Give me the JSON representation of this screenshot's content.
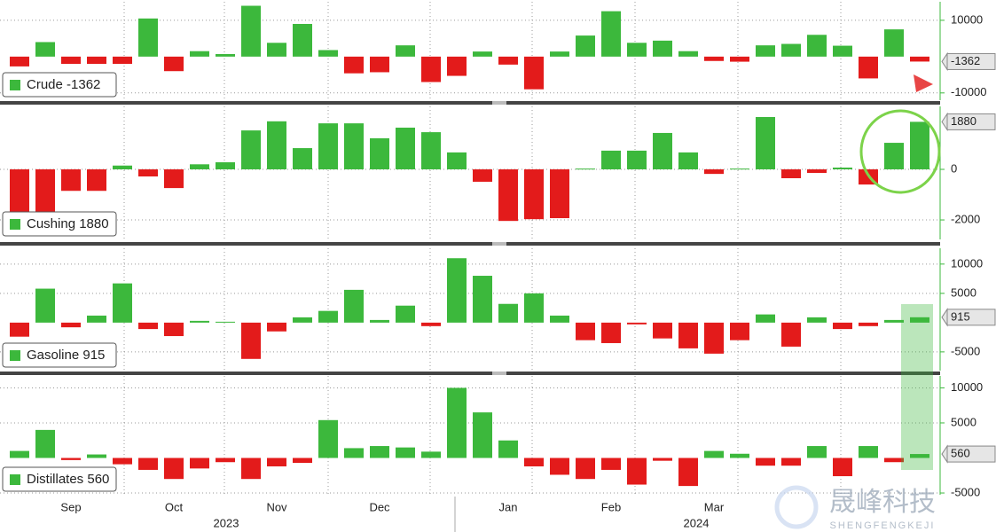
{
  "chart_data": [
    {
      "type": "bar",
      "name": "Crude",
      "legend": "Crude -1362",
      "up_color": "#3cb83c",
      "down_color": "#e31b1b",
      "ylim": [
        -12000,
        15100
      ],
      "yticks": [
        10000,
        -10000
      ],
      "grid": true,
      "values": [
        -2700,
        4000,
        -2000,
        -2000,
        -2000,
        10500,
        -4000,
        1500,
        700,
        14000,
        3800,
        9000,
        1800,
        -4600,
        -4300,
        3100,
        -7000,
        -5300,
        1400,
        -2200,
        -9000,
        1400,
        5800,
        12500,
        3800,
        4400,
        1500,
        -1200,
        -1400,
        3100,
        3500,
        6000,
        3000,
        -6000,
        7500,
        -1362
      ]
    },
    {
      "type": "bar",
      "name": "Cushing",
      "legend": "Cushing 1880",
      "up_color": "#3cb83c",
      "down_color": "#e31b1b",
      "ylim": [
        -2770,
        2490
      ],
      "yticks": [
        0,
        -2000
      ],
      "grid": true,
      "values": [
        -1900,
        -2350,
        -850,
        -850,
        150,
        -280,
        -740,
        200,
        280,
        1540,
        1900,
        840,
        1820,
        1820,
        1230,
        1650,
        1470,
        670,
        -490,
        -2040,
        -1970,
        -1930,
        30,
        740,
        740,
        1440,
        670,
        -180,
        30,
        2070,
        -350,
        -140,
        70,
        -600,
        1050,
        1880
      ]
    },
    {
      "type": "bar",
      "name": "Gasoline",
      "legend": "Gasoline 915",
      "up_color": "#3cb83c",
      "down_color": "#e31b1b",
      "ylim": [
        -8200,
        12700
      ],
      "yticks": [
        10000,
        5000,
        -5000
      ],
      "grid": true,
      "values": [
        -2400,
        5800,
        -800,
        1200,
        6700,
        -1100,
        -2300,
        300,
        150,
        -6200,
        -1500,
        900,
        2000,
        5600,
        450,
        2900,
        -600,
        11000,
        8000,
        3200,
        5000,
        1200,
        -3000,
        -3500,
        -300,
        -2700,
        -4400,
        -5300,
        -3000,
        1400,
        -4100,
        900,
        -1100,
        -600,
        450,
        915
      ]
    },
    {
      "type": "bar",
      "name": "Distillates",
      "legend": "Distillates 560",
      "up_color": "#3cb83c",
      "down_color": "#e31b1b",
      "ylim": [
        -5250,
        11700
      ],
      "yticks": [
        10000,
        5000,
        -5000
      ],
      "grid": true,
      "values": [
        1000,
        4000,
        -300,
        500,
        -900,
        -1700,
        -3000,
        -1500,
        -600,
        -3000,
        -1200,
        -700,
        5400,
        1400,
        1700,
        1500,
        900,
        10000,
        6500,
        2500,
        -1200,
        -2400,
        -3000,
        -1700,
        -3800,
        -400,
        -4000,
        1000,
        600,
        -1100,
        -1100,
        1700,
        -2600,
        1700,
        -600,
        560
      ]
    }
  ],
  "x_axis": {
    "categories": [
      null,
      null,
      "Sep",
      null,
      null,
      null,
      "Oct",
      null,
      null,
      null,
      "Nov",
      null,
      null,
      null,
      "Dec",
      null,
      null,
      null,
      null,
      "Jan",
      null,
      null,
      null,
      "Feb",
      null,
      null,
      null,
      "Mar",
      null,
      null,
      null,
      null,
      null,
      null,
      null,
      null
    ],
    "years": [
      "2023",
      "2024"
    ]
  },
  "watermark": {
    "title": "晟峰科技",
    "subtitle": "SHENGFENGKEJI"
  }
}
